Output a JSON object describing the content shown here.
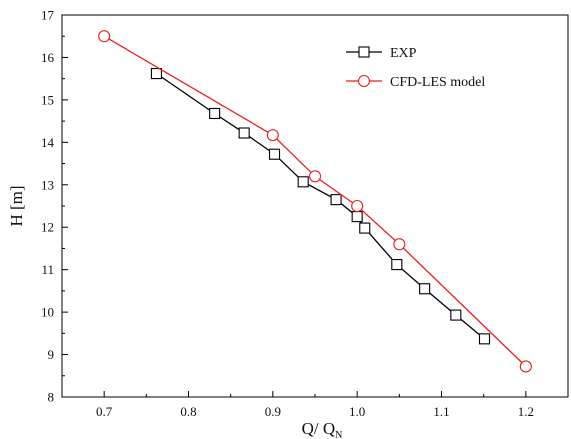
{
  "chart_data": {
    "type": "line",
    "title": "",
    "xlabel": "Q/ Q",
    "xlabel_subscript": "N",
    "ylabel": "H [m]",
    "xlim": [
      0.65,
      1.25
    ],
    "ylim": [
      8,
      17
    ],
    "xticks": [
      "0.7",
      "0.8",
      "0.9",
      "1.0",
      "1.1",
      "1.2"
    ],
    "yticks": [
      "8",
      "9",
      "10",
      "11",
      "12",
      "13",
      "14",
      "15",
      "16",
      "17"
    ],
    "grid": false,
    "legend_position": "top-right",
    "series": [
      {
        "name": "EXP",
        "color": "#000000",
        "marker": "square",
        "x": [
          0.762,
          0.831,
          0.866,
          0.902,
          0.936,
          0.975,
          1.0,
          1.009,
          1.047,
          1.08,
          1.117,
          1.151
        ],
        "y": [
          15.62,
          14.68,
          14.22,
          13.72,
          13.07,
          12.65,
          12.25,
          11.98,
          11.12,
          10.55,
          9.93,
          9.37
        ]
      },
      {
        "name": "CFD-LES model",
        "color": "#e8201c",
        "marker": "circle",
        "x": [
          0.7,
          0.9,
          0.95,
          1.0,
          1.05,
          1.2
        ],
        "y": [
          16.5,
          14.17,
          13.2,
          12.5,
          11.6,
          8.72
        ]
      }
    ]
  }
}
